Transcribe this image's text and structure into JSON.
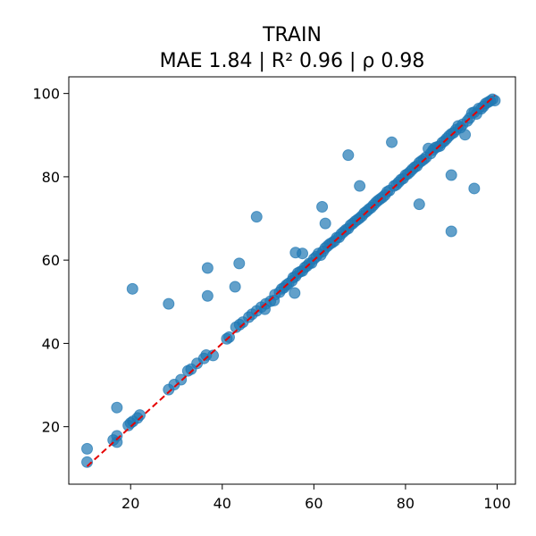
{
  "chart_data": {
    "type": "scatter",
    "title": "TRAIN",
    "subtitle": "MAE 1.84 | R² 0.96 | ρ 0.98",
    "xlabel": "",
    "ylabel": "",
    "xlim": [
      6.5,
      104
    ],
    "ylim": [
      6.2,
      104
    ],
    "xticks": [
      20,
      40,
      60,
      80,
      100
    ],
    "yticks": [
      20,
      40,
      60,
      80,
      100
    ],
    "grid": false,
    "colors": {
      "points": "#1f77b4",
      "reference_line": "#e60000"
    },
    "reference_line": {
      "style": "dashed",
      "from": [
        10.5,
        10.5
      ],
      "to": [
        99.5,
        99.5
      ]
    },
    "points": [
      [
        10.5,
        11.5
      ],
      [
        10.5,
        14.7
      ],
      [
        16.2,
        16.8
      ],
      [
        17.0,
        16.3
      ],
      [
        17.0,
        17.8
      ],
      [
        17.0,
        24.6
      ],
      [
        19.5,
        20.3
      ],
      [
        20.0,
        20.9
      ],
      [
        20.5,
        21.3
      ],
      [
        21.5,
        22.1
      ],
      [
        22.0,
        22.8
      ],
      [
        20.4,
        53.1
      ],
      [
        28.3,
        28.9
      ],
      [
        29.5,
        30.1
      ],
      [
        31.0,
        31.3
      ],
      [
        32.5,
        33.4
      ],
      [
        33.2,
        33.8
      ],
      [
        34.5,
        35.2
      ],
      [
        36.0,
        36.4
      ],
      [
        36.5,
        37.2
      ],
      [
        38.0,
        37.1
      ],
      [
        28.3,
        49.5
      ],
      [
        36.8,
        58.1
      ],
      [
        36.8,
        51.4
      ],
      [
        41.0,
        41.1
      ],
      [
        41.5,
        41.5
      ],
      [
        43.0,
        43.9
      ],
      [
        43.8,
        44.5
      ],
      [
        44.5,
        45.1
      ],
      [
        43.7,
        59.2
      ],
      [
        42.8,
        53.6
      ],
      [
        47.5,
        70.4
      ],
      [
        45.8,
        46.3
      ],
      [
        46.5,
        47.0
      ],
      [
        47.5,
        47.8
      ],
      [
        48.5,
        48.7
      ],
      [
        49.3,
        48.2
      ],
      [
        49.5,
        49.5
      ],
      [
        50.5,
        50.1
      ],
      [
        51.3,
        50.3
      ],
      [
        51.5,
        51.7
      ],
      [
        52.5,
        52.3
      ],
      [
        53.0,
        53.1
      ],
      [
        53.5,
        53.4
      ],
      [
        54.0,
        54.0
      ],
      [
        54.5,
        54.4
      ],
      [
        55.2,
        55.0
      ],
      [
        55.8,
        52.1
      ],
      [
        55.5,
        55.8
      ],
      [
        56.0,
        56.1
      ],
      [
        56.5,
        56.9
      ],
      [
        57.0,
        57.2
      ],
      [
        57.5,
        57.4
      ],
      [
        58.0,
        58.2
      ],
      [
        58.5,
        58.6
      ],
      [
        59.0,
        59.2
      ],
      [
        59.5,
        59.3
      ],
      [
        56.0,
        61.8
      ],
      [
        57.5,
        61.6
      ],
      [
        60.0,
        60.3
      ],
      [
        60.5,
        60.8
      ],
      [
        61.0,
        61.6
      ],
      [
        61.5,
        61.2
      ],
      [
        62.0,
        62.1
      ],
      [
        62.5,
        62.9
      ],
      [
        63.0,
        63.4
      ],
      [
        61.8,
        72.8
      ],
      [
        62.5,
        68.8
      ],
      [
        63.5,
        63.9
      ],
      [
        64.0,
        64.2
      ],
      [
        64.5,
        64.6
      ],
      [
        65.0,
        65.4
      ],
      [
        65.5,
        65.5
      ],
      [
        66.0,
        66.3
      ],
      [
        66.5,
        66.8
      ],
      [
        67.0,
        67.3
      ],
      [
        67.5,
        67.6
      ],
      [
        67.5,
        85.2
      ],
      [
        68.0,
        68.4
      ],
      [
        68.5,
        68.8
      ],
      [
        69.0,
        69.3
      ],
      [
        69.5,
        69.7
      ],
      [
        70.0,
        70.1
      ],
      [
        70.5,
        70.6
      ],
      [
        71.0,
        71.3
      ],
      [
        71.5,
        71.7
      ],
      [
        72.0,
        72.2
      ],
      [
        72.5,
        72.6
      ],
      [
        70.0,
        77.8
      ],
      [
        73.0,
        73.2
      ],
      [
        73.5,
        73.8
      ],
      [
        74.0,
        74.3
      ],
      [
        74.5,
        74.7
      ],
      [
        75.0,
        75.1
      ],
      [
        75.5,
        75.6
      ],
      [
        76.0,
        76.4
      ],
      [
        76.5,
        76.7
      ],
      [
        77.0,
        88.3
      ],
      [
        77.5,
        77.8
      ],
      [
        78.0,
        78.1
      ],
      [
        78.5,
        78.7
      ],
      [
        79.0,
        79.3
      ],
      [
        79.5,
        79.6
      ],
      [
        80.0,
        80.4
      ],
      [
        80.5,
        80.7
      ],
      [
        81.0,
        81.2
      ],
      [
        81.5,
        81.8
      ],
      [
        82.0,
        82.3
      ],
      [
        82.5,
        82.6
      ],
      [
        83.0,
        83.4
      ],
      [
        83.0,
        73.4
      ],
      [
        83.5,
        83.8
      ],
      [
        84.0,
        84.2
      ],
      [
        84.5,
        84.7
      ],
      [
        85.0,
        86.8
      ],
      [
        85.5,
        85.6
      ],
      [
        86.0,
        86.4
      ],
      [
        86.5,
        87.0
      ],
      [
        87.0,
        87.2
      ],
      [
        87.5,
        87.4
      ],
      [
        88.0,
        88.2
      ],
      [
        88.5,
        88.6
      ],
      [
        89.0,
        89.2
      ],
      [
        89.5,
        89.8
      ],
      [
        90.0,
        90.3
      ],
      [
        90.0,
        80.4
      ],
      [
        90.0,
        66.9
      ],
      [
        90.5,
        90.6
      ],
      [
        91.0,
        91.3
      ],
      [
        91.5,
        92.2
      ],
      [
        92.0,
        91.8
      ],
      [
        92.5,
        92.6
      ],
      [
        93.0,
        90.1
      ],
      [
        93.5,
        93.4
      ],
      [
        94.0,
        94.1
      ],
      [
        94.5,
        95.3
      ],
      [
        95.0,
        95.5
      ],
      [
        95.5,
        95.1
      ],
      [
        95.0,
        77.2
      ],
      [
        96.0,
        96.4
      ],
      [
        96.5,
        96.3
      ],
      [
        97.0,
        96.9
      ],
      [
        97.5,
        97.6
      ],
      [
        98.0,
        97.9
      ],
      [
        98.5,
        98.2
      ],
      [
        99.0,
        98.6
      ],
      [
        99.5,
        98.3
      ]
    ]
  }
}
